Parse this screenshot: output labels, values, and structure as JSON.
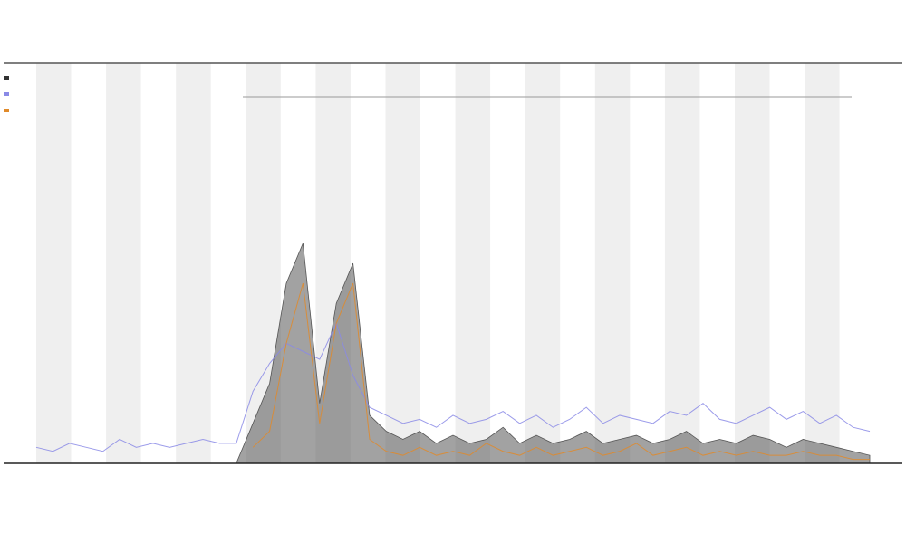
{
  "chart_data": {
    "type": "line",
    "x": [
      0,
      2,
      4,
      6,
      8,
      10,
      12,
      14,
      16,
      18,
      20,
      22,
      24,
      26,
      28,
      30,
      32,
      34,
      36,
      38,
      40,
      42,
      44,
      46,
      48,
      50,
      52,
      54,
      56,
      58,
      60,
      62,
      64,
      66,
      68,
      70,
      72,
      74,
      76,
      78,
      80,
      82,
      84,
      86,
      88,
      90,
      92,
      94,
      96,
      98,
      100
    ],
    "xlim": [
      0,
      100
    ],
    "ylim": [
      0,
      100
    ],
    "series": [
      {
        "color": "#555555",
        "fill": true,
        "values": [
          0,
          0,
          0,
          0,
          0,
          0,
          0,
          0,
          0,
          0,
          0,
          0,
          0,
          10,
          20,
          45,
          55,
          15,
          40,
          50,
          12,
          8,
          6,
          8,
          5,
          7,
          5,
          6,
          9,
          5,
          7,
          5,
          6,
          8,
          5,
          6,
          7,
          5,
          6,
          8,
          5,
          6,
          5,
          7,
          6,
          4,
          6,
          5,
          4,
          3,
          2
        ]
      },
      {
        "color": "#8a8ae6",
        "values": [
          4,
          3,
          5,
          4,
          3,
          6,
          4,
          5,
          4,
          5,
          6,
          5,
          5,
          18,
          25,
          30,
          28,
          26,
          35,
          22,
          14,
          12,
          10,
          11,
          9,
          12,
          10,
          11,
          13,
          10,
          12,
          9,
          11,
          14,
          10,
          12,
          11,
          10,
          13,
          12,
          15,
          11,
          10,
          12,
          14,
          11,
          13,
          10,
          12,
          9,
          8
        ]
      },
      {
        "color": "#e08a2a",
        "values": [
          null,
          null,
          null,
          null,
          null,
          null,
          null,
          null,
          null,
          null,
          null,
          null,
          null,
          4,
          8,
          30,
          45,
          10,
          35,
          45,
          6,
          3,
          2,
          4,
          2,
          3,
          2,
          5,
          3,
          2,
          4,
          2,
          3,
          4,
          2,
          3,
          5,
          2,
          3,
          4,
          2,
          3,
          2,
          3,
          2,
          2,
          3,
          2,
          2,
          1,
          1
        ]
      }
    ]
  }
}
